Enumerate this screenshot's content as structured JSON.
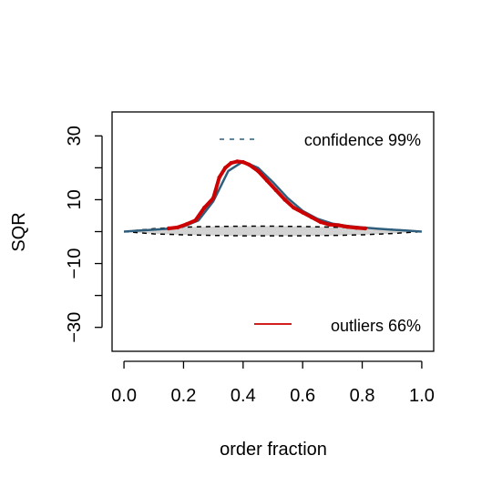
{
  "chart_data": {
    "type": "line",
    "xlabel": "order fraction",
    "ylabel": "SQR",
    "xlim": [
      -0.04,
      1.04
    ],
    "ylim": [
      -37.5,
      37.5
    ],
    "x_ticks": [
      "0.0",
      "0.2",
      "0.4",
      "0.6",
      "0.8",
      "1.0"
    ],
    "x_tick_values": [
      0,
      0.2,
      0.4,
      0.6,
      0.8,
      1.0
    ],
    "y_ticks": [
      "-30",
      "-20",
      "-10",
      "0",
      "10",
      "20",
      "30"
    ],
    "y_tick_values": [
      -30,
      -20,
      -10,
      0,
      10,
      20,
      30
    ],
    "y_tick_labels": [
      {
        "value": -30,
        "text": "−30"
      },
      {
        "value": -10,
        "text": "−10"
      },
      {
        "value": 10,
        "text": "10"
      },
      {
        "value": 30,
        "text": "30"
      }
    ],
    "grid": false,
    "legend": [
      {
        "name": "confidence 99%",
        "style": "dashed",
        "color": "#2f5d7c",
        "position": "top-right"
      },
      {
        "name": "outliers 66%",
        "style": "solid",
        "color": "#cc0000",
        "position": "bottom-right"
      }
    ],
    "series": [
      {
        "name": "confidence 99%",
        "role": "upper-band",
        "color": "#000000",
        "x": [
          0.0,
          0.1,
          0.2,
          0.3,
          0.4,
          0.5,
          0.6,
          0.7,
          0.8,
          0.9,
          1.0
        ],
        "y": [
          0.0,
          0.9,
          1.4,
          1.6,
          1.7,
          1.7,
          1.6,
          1.4,
          1.2,
          0.7,
          0.0
        ]
      },
      {
        "name": "confidence 99%",
        "role": "lower-band",
        "color": "#000000",
        "x": [
          0.0,
          0.1,
          0.2,
          0.3,
          0.4,
          0.5,
          0.6,
          0.7,
          0.8,
          0.9,
          1.0
        ],
        "y": [
          0.0,
          -0.7,
          -1.0,
          -1.2,
          -1.3,
          -1.3,
          -1.3,
          -1.2,
          -1.0,
          -0.6,
          0.0
        ]
      },
      {
        "name": "SQR",
        "role": "curve",
        "color": "#2f5d7c",
        "x": [
          0.0,
          0.05,
          0.1,
          0.15,
          0.2,
          0.25,
          0.3,
          0.35,
          0.4,
          0.45,
          0.5,
          0.55,
          0.6,
          0.65,
          0.7,
          0.75,
          0.8,
          0.85,
          0.9,
          0.95,
          1.0
        ],
        "y": [
          0.0,
          0.3,
          0.6,
          0.9,
          1.6,
          3.5,
          9.5,
          19.0,
          22.0,
          20.0,
          15.5,
          10.5,
          6.5,
          4.0,
          2.5,
          1.8,
          1.3,
          0.9,
          0.6,
          0.3,
          0.0
        ]
      },
      {
        "name": "outliers 66%",
        "role": "outliers",
        "color": "#cc0000",
        "x": [
          0.15,
          0.18,
          0.21,
          0.24,
          0.27,
          0.3,
          0.32,
          0.34,
          0.36,
          0.38,
          0.4,
          0.42,
          0.45,
          0.48,
          0.51,
          0.54,
          0.57,
          0.6,
          0.63,
          0.66,
          0.69,
          0.72,
          0.75,
          0.78,
          0.81
        ],
        "y": [
          1.0,
          1.3,
          2.3,
          3.5,
          7.5,
          10.5,
          17.0,
          20.0,
          21.5,
          22.0,
          21.8,
          21.0,
          19.0,
          16.0,
          13.0,
          10.0,
          7.5,
          6.0,
          4.5,
          3.0,
          2.2,
          2.0,
          1.5,
          1.2,
          1.0
        ]
      }
    ]
  },
  "legend": {
    "confidence_label": "confidence 99%",
    "outliers_label": "outliers 66%"
  },
  "axes": {
    "xlabel": "order fraction",
    "ylabel": "SQR"
  }
}
